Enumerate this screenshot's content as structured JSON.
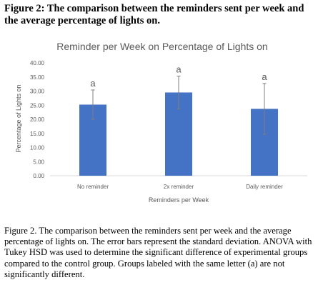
{
  "figure": {
    "title": "Figure 2: The comparison between the reminders sent per week and the average percentage of lights on.",
    "caption": "Figure 2. The comparison between the reminders sent per week and the average percentage of lights on. The error bars represent the standard deviation. ANOVA with Tukey HSD was used to determine the significant difference of experimental groups compared to the control group. Groups labeled with the same letter (a) are not significantly different."
  },
  "chart_data": {
    "type": "bar",
    "title": "Reminder per Week on Percentage of Lights on",
    "xlabel": "Reminders per Week",
    "ylabel": "Percentage of Lights on",
    "categories": [
      "No reminder",
      "2x reminder",
      "Daily reminder"
    ],
    "values": [
      25.2,
      29.5,
      23.7
    ],
    "error_bars": [
      5.2,
      5.8,
      9.0
    ],
    "significance_letters": [
      "a",
      "a",
      "a"
    ],
    "ylim": [
      0,
      40
    ],
    "yticks": [
      "0.00",
      "5.00",
      "10.00",
      "15.00",
      "20.00",
      "25.00",
      "30.00",
      "35.00",
      "40.00"
    ],
    "grid": false,
    "bar_color": "#4472c4",
    "error_bar_color": "#7f7f7f"
  }
}
